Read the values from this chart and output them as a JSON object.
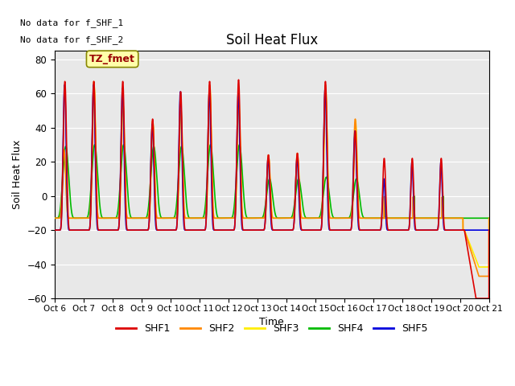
{
  "title": "Soil Heat Flux",
  "xlabel": "Time",
  "ylabel": "Soil Heat Flux",
  "ylim": [
    -60,
    85
  ],
  "yticks": [
    -60,
    -40,
    -20,
    0,
    20,
    40,
    60,
    80
  ],
  "xtick_labels": [
    "Oct 6",
    "Oct 7",
    "Oct 8",
    "Oct 9",
    "Oct 10",
    "Oct 11",
    "Oct 12",
    "Oct 13",
    "Oct 14",
    "Oct 15",
    "Oct 16",
    "Oct 17",
    "Oct 18",
    "Oct 19",
    "Oct 20",
    "Oct 21"
  ],
  "colors": {
    "SHF1": "#dd0000",
    "SHF2": "#ff8800",
    "SHF3": "#ffee00",
    "SHF4": "#00bb00",
    "SHF5": "#0000dd"
  },
  "no_data_text_1": "No data for f_SHF_1",
  "no_data_text_2": "No data for f_SHF_2",
  "annotation_box_text": "TZ_fmet",
  "annotation_box_facecolor": "#ffffaa",
  "annotation_box_edgecolor": "#888800",
  "background_color": "#e8e8e8",
  "plot_bg_light": "#f0f0f0",
  "title_fontsize": 12,
  "axis_fontsize": 9,
  "legend_fontsize": 9,
  "line_width": 1.2
}
